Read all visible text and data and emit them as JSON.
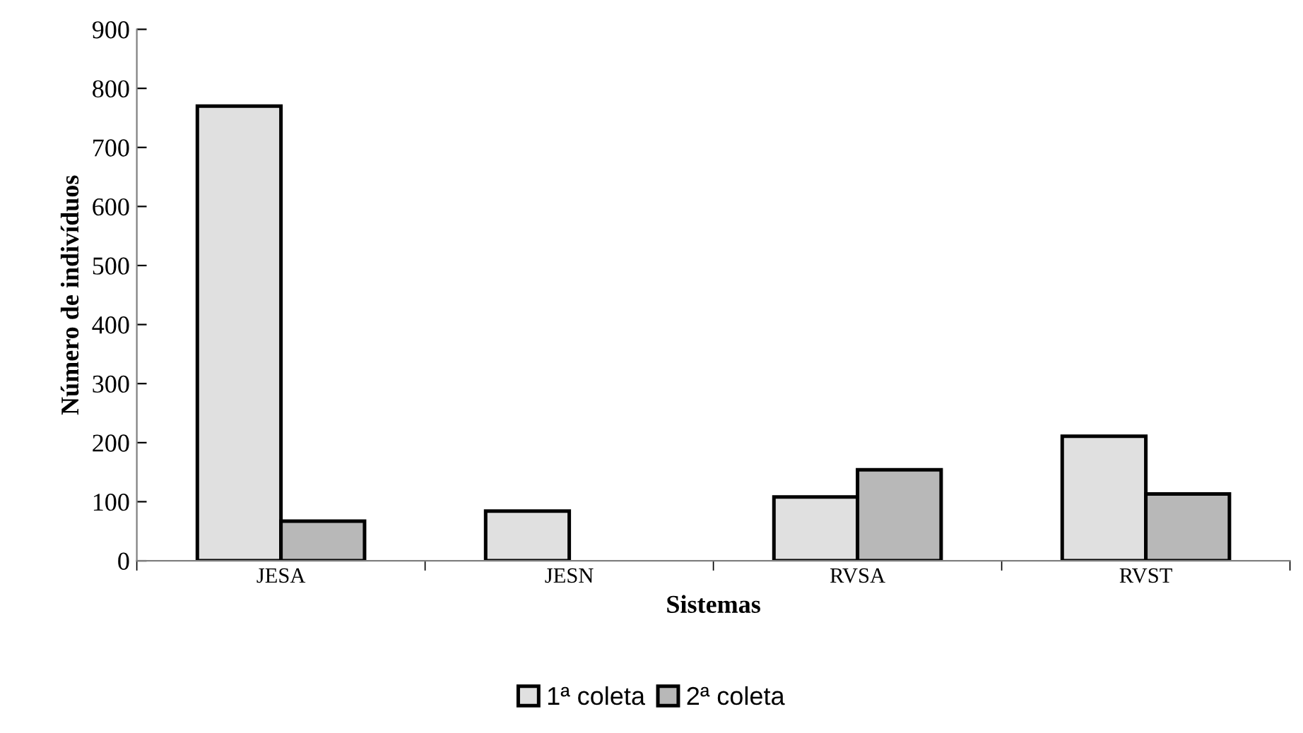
{
  "chart_data": {
    "type": "bar",
    "xlabel": "Sistemas",
    "ylabel": "Número de indivíduos",
    "categories": [
      "JESA",
      "JESN",
      "RVSA",
      "RVST"
    ],
    "series": [
      {
        "name": "1ª coleta",
        "color": "#e0e0e0",
        "values": [
          770,
          84,
          108,
          211
        ]
      },
      {
        "name": "2ª coleta",
        "color": "#b8b8b8",
        "values": [
          67,
          null,
          154,
          113
        ]
      }
    ],
    "ylim": [
      0,
      900
    ],
    "yticks": [
      0,
      100,
      200,
      300,
      400,
      500,
      600,
      700,
      800,
      900
    ],
    "grid": false,
    "legend": "bottom"
  }
}
